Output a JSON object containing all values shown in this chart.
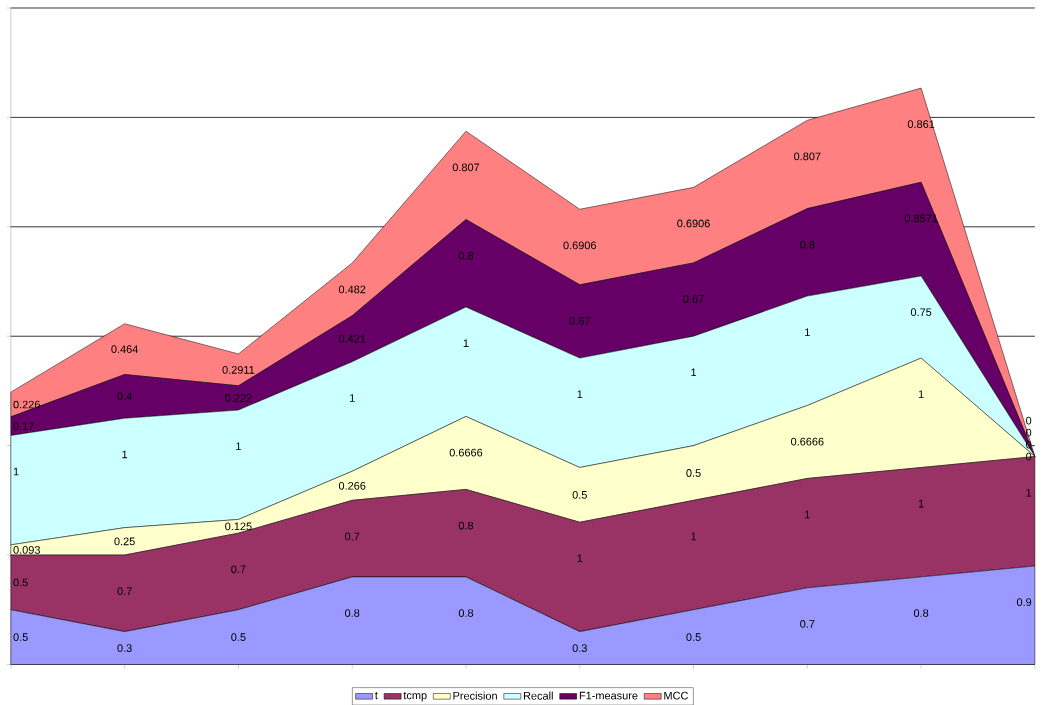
{
  "chart_data": {
    "type": "area",
    "stacked": true,
    "categories": [
      null,
      null,
      null,
      null,
      null,
      null,
      null,
      null,
      null,
      null
    ],
    "series": [
      {
        "name": "t",
        "color": "#9999ff",
        "values": [
          0.5,
          0.3,
          0.5,
          0.8,
          0.8,
          0.3,
          0.5,
          0.7,
          0.8,
          0.9
        ]
      },
      {
        "name": "tcmp",
        "color": "#993366",
        "values": [
          0.5,
          0.7,
          0.7,
          0.7,
          0.8,
          1,
          1,
          1,
          1,
          1
        ]
      },
      {
        "name": "Precision",
        "color": "#ffffcc",
        "values": [
          0.093,
          0.25,
          0.125,
          0.266,
          0.6666,
          0.5,
          0.5,
          0.6666,
          1,
          0
        ]
      },
      {
        "name": "Recall",
        "color": "#ccffff",
        "values": [
          1,
          1,
          1,
          1,
          1,
          1,
          1,
          1,
          0.75,
          0
        ]
      },
      {
        "name": "F1-measure",
        "color": "#660066",
        "values": [
          0.17,
          0.4,
          0.222,
          0.421,
          0.8,
          0.67,
          0.67,
          0.8,
          0.8571,
          0
        ]
      },
      {
        "name": "MCC",
        "color": "#ff8080",
        "values": [
          0.226,
          0.464,
          0.2911,
          0.482,
          0.807,
          0.6906,
          0.6906,
          0.807,
          0.861,
          0
        ]
      }
    ],
    "ylim": [
      0,
      6
    ],
    "yticks": [
      {
        "value": 0,
        "label": null
      },
      {
        "value": 1,
        "label": null
      },
      {
        "value": 2,
        "label": null
      },
      {
        "value": 3,
        "label": null
      },
      {
        "value": 4,
        "label": null
      },
      {
        "value": 5,
        "label": null
      },
      {
        "value": 6,
        "label": null
      }
    ],
    "grid": "y",
    "data_labels": true,
    "legend": "bottom"
  }
}
